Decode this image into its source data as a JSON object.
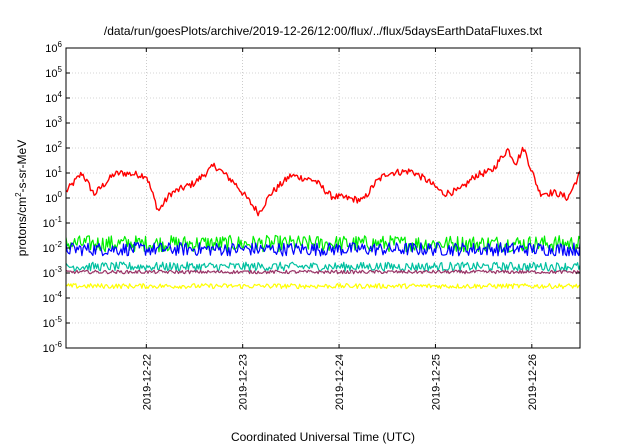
{
  "chart_data": {
    "type": "line",
    "title": "/data/run/goesPlots/archive/2019-12-26/12:00/flux/../flux/5daysEarthDataFluxes.txt",
    "xlabel": "Coordinated Universal Time (UTC)",
    "ylabel_main": "protons/cm",
    "ylabel_sup": "2",
    "ylabel_tail": "-s-sr-MeV",
    "y_scale": "log",
    "ylim": [
      1e-06,
      1000000.0
    ],
    "y_ticks": [
      {
        "value": 1000000.0,
        "base": "10",
        "exp": "6"
      },
      {
        "value": 100000.0,
        "base": "10",
        "exp": "5"
      },
      {
        "value": 10000.0,
        "base": "10",
        "exp": "4"
      },
      {
        "value": 1000.0,
        "base": "10",
        "exp": "3"
      },
      {
        "value": 100.0,
        "base": "10",
        "exp": "2"
      },
      {
        "value": 10.0,
        "base": "10",
        "exp": "1"
      },
      {
        "value": 1.0,
        "base": "10",
        "exp": "0"
      },
      {
        "value": 0.1,
        "base": "10",
        "exp": "-1"
      },
      {
        "value": 0.01,
        "base": "10",
        "exp": "-2"
      },
      {
        "value": 0.001,
        "base": "10",
        "exp": "-3"
      },
      {
        "value": 0.0001,
        "base": "10",
        "exp": "-4"
      },
      {
        "value": 1e-05,
        "base": "10",
        "exp": "-5"
      },
      {
        "value": 1e-06,
        "base": "10",
        "exp": "-6"
      }
    ],
    "xlim": [
      "2019-12-21T04:00",
      "2019-12-26T12:00"
    ],
    "x_ticks": [
      {
        "date": "2019-12-22T00:00",
        "label": "2019-12-22"
      },
      {
        "date": "2019-12-23T00:00",
        "label": "2019-12-23"
      },
      {
        "date": "2019-12-24T00:00",
        "label": "2019-12-24"
      },
      {
        "date": "2019-12-25T00:00",
        "label": "2019-12-25"
      },
      {
        "date": "2019-12-26T00:00",
        "label": "2019-12-26"
      }
    ],
    "grid": true,
    "series": [
      {
        "color": "#ff0000",
        "noise": 0.14,
        "x": [
          "2019-12-21T04:00",
          "2019-12-21T08:00",
          "2019-12-21T11:00",
          "2019-12-21T16:00",
          "2019-12-21T18:00",
          "2019-12-22T00:00",
          "2019-12-22T03:00",
          "2019-12-22T06:00",
          "2019-12-22T12:00",
          "2019-12-22T17:00",
          "2019-12-22T22:00",
          "2019-12-23T04:00",
          "2019-12-23T07:00",
          "2019-12-23T12:00",
          "2019-12-23T18:00",
          "2019-12-23T22:00",
          "2019-12-24T06:00",
          "2019-12-24T09:00",
          "2019-12-24T12:00",
          "2019-12-24T18:00",
          "2019-12-24T22:00",
          "2019-12-25T02:00",
          "2019-12-25T06:00",
          "2019-12-25T10:00",
          "2019-12-25T14:00",
          "2019-12-25T18:00",
          "2019-12-25T20:00",
          "2019-12-25T22:00",
          "2019-12-26T00:00",
          "2019-12-26T02:00",
          "2019-12-26T06:00",
          "2019-12-26T09:00",
          "2019-12-26T12:00"
        ],
        "y": [
          1.8,
          10,
          1.4,
          9,
          10,
          8,
          0.3,
          1.5,
          4,
          20,
          4,
          0.25,
          1.5,
          8,
          5,
          1.2,
          0.8,
          4,
          10,
          12,
          5,
          1.5,
          2,
          8,
          12,
          90,
          25,
          100,
          12,
          1.6,
          1.6,
          1.0,
          10
        ]
      },
      {
        "color": "#00ee00",
        "noise": 0.33,
        "x": [
          "2019-12-21T04:00",
          "2019-12-26T12:00"
        ],
        "y": [
          0.015,
          0.015
        ]
      },
      {
        "color": "#0000ff",
        "noise": 0.27,
        "x": [
          "2019-12-21T04:00",
          "2019-12-26T12:00"
        ],
        "y": [
          0.009,
          0.009
        ]
      },
      {
        "color": "#00c0a0",
        "noise": 0.18,
        "x": [
          "2019-12-21T04:00",
          "2019-12-26T12:00"
        ],
        "y": [
          0.0018,
          0.0018
        ]
      },
      {
        "color": "#ffff00",
        "noise": 0.1,
        "x": [
          "2019-12-21T04:00",
          "2019-12-26T12:00"
        ],
        "y": [
          0.0003,
          0.0003
        ]
      },
      {
        "color": "#993366",
        "noise": 0.07,
        "x": [
          "2019-12-21T04:00",
          "2019-12-26T12:00"
        ],
        "y": [
          0.0011,
          0.0011
        ]
      }
    ]
  }
}
